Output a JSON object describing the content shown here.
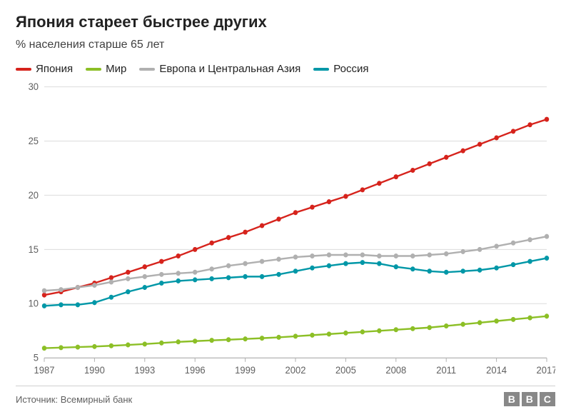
{
  "title": "Япония стареет быстрее других",
  "subtitle": "% населения старше 65 лет",
  "source_line": "Источник: Всемирный банк",
  "logo": {
    "letters": [
      "B",
      "B",
      "C"
    ],
    "box_color": "#888888",
    "text_color": "#ffffff"
  },
  "chart": {
    "type": "line",
    "background_color": "#ffffff",
    "grid_color": "#e0e0e0",
    "axis_color": "#b0b0b0",
    "text_color": "#606060",
    "label_fontsize": 13,
    "line_width": 2.2,
    "marker_radius": 3.2,
    "marker_style": "circle",
    "x": {
      "min": 1987,
      "max": 2017,
      "tick_step": 3,
      "ticks": [
        1987,
        1990,
        1993,
        1996,
        1999,
        2002,
        2005,
        2008,
        2011,
        2014,
        2017
      ]
    },
    "y": {
      "min": 5,
      "max": 30,
      "tick_step": 5,
      "ticks": [
        5,
        10,
        15,
        20,
        25,
        30
      ]
    },
    "years": [
      1987,
      1988,
      1989,
      1990,
      1991,
      1992,
      1993,
      1994,
      1995,
      1996,
      1997,
      1998,
      1999,
      2000,
      2001,
      2002,
      2003,
      2004,
      2005,
      2006,
      2007,
      2008,
      2009,
      2010,
      2011,
      2012,
      2013,
      2014,
      2015,
      2016,
      2017
    ],
    "series": [
      {
        "key": "japan",
        "label": "Япония",
        "color": "#d6231c",
        "values": [
          10.8,
          11.1,
          11.5,
          11.9,
          12.4,
          12.9,
          13.4,
          13.9,
          14.4,
          15.0,
          15.6,
          16.1,
          16.6,
          17.2,
          17.8,
          18.4,
          18.9,
          19.4,
          19.9,
          20.5,
          21.1,
          21.7,
          22.3,
          22.9,
          23.5,
          24.1,
          24.7,
          25.3,
          25.9,
          26.5,
          27.0
        ]
      },
      {
        "key": "world",
        "label": "Мир",
        "color": "#8cbf26",
        "values": [
          5.9,
          5.95,
          6.0,
          6.05,
          6.12,
          6.2,
          6.28,
          6.38,
          6.48,
          6.55,
          6.62,
          6.68,
          6.75,
          6.82,
          6.9,
          7.0,
          7.1,
          7.2,
          7.3,
          7.4,
          7.5,
          7.6,
          7.7,
          7.8,
          7.95,
          8.1,
          8.25,
          8.4,
          8.55,
          8.7,
          8.85
        ]
      },
      {
        "key": "eca",
        "label": "Европа и Центральная Азия",
        "color": "#b0b0b0",
        "values": [
          11.2,
          11.3,
          11.5,
          11.7,
          12.0,
          12.3,
          12.5,
          12.7,
          12.8,
          12.9,
          13.2,
          13.5,
          13.7,
          13.9,
          14.1,
          14.3,
          14.4,
          14.5,
          14.5,
          14.5,
          14.4,
          14.4,
          14.4,
          14.5,
          14.6,
          14.8,
          15.0,
          15.3,
          15.6,
          15.9,
          16.2
        ]
      },
      {
        "key": "russia",
        "label": "Россия",
        "color": "#0097a7",
        "values": [
          9.8,
          9.9,
          9.9,
          10.1,
          10.6,
          11.1,
          11.5,
          11.9,
          12.1,
          12.2,
          12.3,
          12.4,
          12.5,
          12.5,
          12.7,
          13.0,
          13.3,
          13.5,
          13.7,
          13.8,
          13.7,
          13.4,
          13.2,
          13.0,
          12.9,
          13.0,
          13.1,
          13.3,
          13.6,
          13.9,
          14.2
        ]
      }
    ]
  }
}
